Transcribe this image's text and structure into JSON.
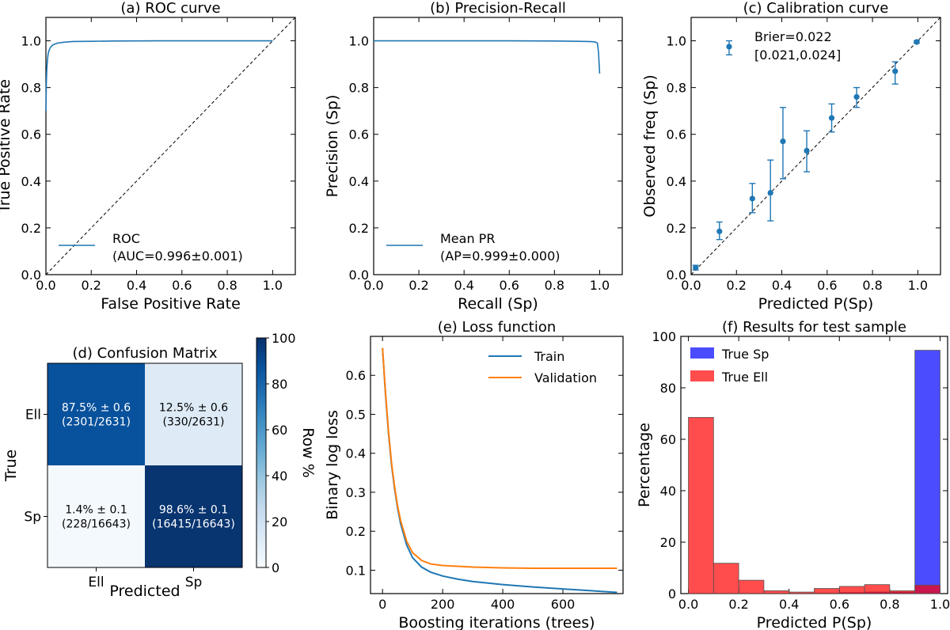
{
  "chart_data": [
    {
      "id": "a",
      "type": "line",
      "title": "(a) ROC curve",
      "xlabel": "False Positive Rate",
      "ylabel": "True Positive Rate",
      "xlim": [
        0.0,
        1.1
      ],
      "ylim": [
        0.0,
        1.1
      ],
      "xticks": [
        0.0,
        0.2,
        0.4,
        0.6,
        0.8,
        1.0
      ],
      "yticks": [
        0.0,
        0.2,
        0.4,
        0.6,
        0.8,
        1.0
      ],
      "tick_labels_x": [
        "0.0",
        "0.2",
        "0.4",
        "0.6",
        "0.8",
        "1.0"
      ],
      "tick_labels_y": [
        "0.0",
        "0.2",
        "0.4",
        "0.6",
        "0.8",
        "1.0"
      ],
      "legend_position": "lower-right",
      "legend_lines": [
        "ROC",
        "(AUC=0.996±0.001)"
      ],
      "color": "#1f77b4",
      "reference_line": [
        [
          0,
          0
        ],
        [
          1.1,
          1.1
        ]
      ],
      "series": [
        {
          "x": [
            0.0,
            0.002,
            0.004,
            0.007,
            0.01,
            0.015,
            0.02,
            0.03,
            0.05,
            0.08,
            0.12,
            0.2,
            0.3,
            0.5,
            0.7,
            1.0
          ],
          "y": [
            0.7,
            0.82,
            0.88,
            0.92,
            0.945,
            0.962,
            0.972,
            0.982,
            0.99,
            0.994,
            0.997,
            0.998,
            0.999,
            1.0,
            1.0,
            1.0
          ]
        }
      ]
    },
    {
      "id": "b",
      "type": "line",
      "title": "(b) Precision-Recall",
      "xlabel": "Recall (Sp)",
      "ylabel": "Precision (Sp)",
      "xlim": [
        0.0,
        1.1
      ],
      "ylim": [
        0.0,
        1.1
      ],
      "xticks": [
        0.0,
        0.2,
        0.4,
        0.6,
        0.8,
        1.0
      ],
      "yticks": [
        0.0,
        0.2,
        0.4,
        0.6,
        0.8,
        1.0
      ],
      "tick_labels_x": [
        "0.0",
        "0.2",
        "0.4",
        "0.6",
        "0.8",
        "1.0"
      ],
      "tick_labels_y": [
        "0.0",
        "0.2",
        "0.4",
        "0.6",
        "0.8",
        "1.0"
      ],
      "legend_position": "lower-right",
      "legend_lines": [
        "Mean PR",
        "(AP=0.999±0.000)"
      ],
      "color": "#1f77b4",
      "series": [
        {
          "x": [
            0.0,
            0.2,
            0.4,
            0.6,
            0.8,
            0.9,
            0.95,
            0.97,
            0.98,
            0.99,
            0.995,
            1.0
          ],
          "y": [
            1.0,
            1.0,
            1.0,
            1.0,
            0.999,
            0.998,
            0.997,
            0.996,
            0.995,
            0.99,
            0.95,
            0.86
          ]
        }
      ]
    },
    {
      "id": "c",
      "type": "scatter",
      "title": "(c) Calibration curve",
      "xlabel": "Predicted P(Sp)",
      "ylabel": "Observed freq (Sp)",
      "xlim": [
        0.0,
        1.1
      ],
      "ylim": [
        0.0,
        1.1
      ],
      "xticks": [
        0.0,
        0.2,
        0.4,
        0.6,
        0.8,
        1.0
      ],
      "yticks": [
        0.0,
        0.2,
        0.4,
        0.6,
        0.8,
        1.0
      ],
      "tick_labels_x": [
        "0.0",
        "0.2",
        "0.4",
        "0.6",
        "0.8",
        "1.0"
      ],
      "tick_labels_y": [
        "0.0",
        "0.2",
        "0.4",
        "0.6",
        "0.8",
        "1.0"
      ],
      "legend_position": "top-left",
      "legend_lines": [
        "Brier=0.022",
        "[0.021,0.024]"
      ],
      "legend_marker": {
        "y": 0.975,
        "lo": 0.94,
        "hi": 1.0
      },
      "color": "#1f77b4",
      "reference_line": [
        [
          0,
          0
        ],
        [
          1.1,
          1.1
        ]
      ],
      "points": [
        {
          "x": 0.02,
          "y": 0.03,
          "lo": 0.02,
          "hi": 0.04
        },
        {
          "x": 0.125,
          "y": 0.185,
          "lo": 0.15,
          "hi": 0.225
        },
        {
          "x": 0.27,
          "y": 0.325,
          "lo": 0.265,
          "hi": 0.39
        },
        {
          "x": 0.35,
          "y": 0.35,
          "lo": 0.23,
          "hi": 0.49
        },
        {
          "x": 0.405,
          "y": 0.57,
          "lo": 0.41,
          "hi": 0.715
        },
        {
          "x": 0.51,
          "y": 0.53,
          "lo": 0.44,
          "hi": 0.615
        },
        {
          "x": 0.62,
          "y": 0.67,
          "lo": 0.61,
          "hi": 0.73
        },
        {
          "x": 0.73,
          "y": 0.76,
          "lo": 0.715,
          "hi": 0.8
        },
        {
          "x": 0.9,
          "y": 0.87,
          "lo": 0.815,
          "hi": 0.91
        },
        {
          "x": 0.995,
          "y": 0.995,
          "lo": 0.99,
          "hi": 1.0
        }
      ]
    },
    {
      "id": "d",
      "type": "heatmap",
      "title": "(d) Confusion Matrix",
      "xlabel": "Predicted",
      "ylabel": "True",
      "row_labels": [
        "Ell",
        "Sp"
      ],
      "col_labels": [
        "Ell",
        "Sp"
      ],
      "values": [
        [
          87.5,
          12.5
        ],
        [
          1.4,
          98.6
        ]
      ],
      "cell_text": [
        [
          [
            "87.5% ± 0.6",
            "(2301/2631)"
          ],
          [
            "12.5% ± 0.6",
            "(330/2631)"
          ]
        ],
        [
          [
            "1.4% ± 0.1",
            "(228/16643)"
          ],
          [
            "98.6% ± 0.1",
            "(16415/16643)"
          ]
        ]
      ],
      "colorbar_label": "Row %",
      "colorbar_range": [
        0,
        100
      ],
      "colorbar_ticks": [
        0,
        20,
        40,
        60,
        80,
        100
      ],
      "colorbar_tick_labels": [
        "0",
        "20",
        "40",
        "60",
        "80",
        "100"
      ],
      "colormap": [
        "#f7fbff",
        "#deebf7",
        "#c6dbef",
        "#9ecae1",
        "#6baed6",
        "#4292c6",
        "#2171b5",
        "#08519c",
        "#08306b"
      ]
    },
    {
      "id": "e",
      "type": "line",
      "title": "(e) Loss function",
      "xlabel": "Boosting iterations (trees)",
      "ylabel": "Binary log loss",
      "xlim": [
        -40,
        800
      ],
      "ylim": [
        0.04,
        0.7
      ],
      "xticks": [
        0,
        200,
        400,
        600
      ],
      "yticks": [
        0.1,
        0.2,
        0.3,
        0.4,
        0.5,
        0.6
      ],
      "tick_labels_x": [
        "0",
        "200",
        "400",
        "600"
      ],
      "tick_labels_y": [
        "0.1",
        "0.2",
        "0.3",
        "0.4",
        "0.5",
        "0.6"
      ],
      "legend_position": "top-right",
      "series": [
        {
          "name": "Train",
          "color": "#1f77b4",
          "x": [
            0,
            10,
            20,
            30,
            40,
            50,
            60,
            80,
            100,
            130,
            160,
            200,
            250,
            300,
            400,
            500,
            600,
            700,
            780
          ],
          "y": [
            0.67,
            0.55,
            0.45,
            0.37,
            0.31,
            0.26,
            0.22,
            0.165,
            0.132,
            0.108,
            0.095,
            0.085,
            0.077,
            0.071,
            0.063,
            0.057,
            0.052,
            0.047,
            0.043
          ]
        },
        {
          "name": "Validation",
          "color": "#ff7f0e",
          "x": [
            0,
            10,
            20,
            30,
            40,
            50,
            60,
            80,
            100,
            130,
            160,
            200,
            250,
            300,
            400,
            500,
            600,
            700,
            780
          ],
          "y": [
            0.67,
            0.555,
            0.455,
            0.375,
            0.315,
            0.265,
            0.228,
            0.175,
            0.145,
            0.125,
            0.116,
            0.112,
            0.11,
            0.108,
            0.106,
            0.105,
            0.105,
            0.105,
            0.105
          ]
        }
      ]
    },
    {
      "id": "f",
      "type": "bar",
      "title": "(f) Results for test sample",
      "xlabel": "Predicted P(Sp)",
      "ylabel": "Percentage",
      "xlim": [
        -0.03,
        1.03
      ],
      "ylim": [
        0,
        100
      ],
      "xticks": [
        0.0,
        0.2,
        0.4,
        0.6,
        0.8,
        1.0
      ],
      "yticks": [
        0,
        20,
        40,
        60,
        80,
        100
      ],
      "tick_labels_x": [
        "0.0",
        "0.2",
        "0.4",
        "0.6",
        "0.8",
        "1.0"
      ],
      "tick_labels_y": [
        "0",
        "20",
        "40",
        "60",
        "80",
        "100"
      ],
      "legend_position": "top-left",
      "bin_edges": [
        0.0,
        0.1,
        0.2,
        0.3,
        0.4,
        0.5,
        0.6,
        0.7,
        0.8,
        0.9,
        1.0
      ],
      "series": [
        {
          "name": "True Sp",
          "color": "#0000ff",
          "opacity": 0.7,
          "values": [
            0.0,
            0.0,
            0.0,
            0.0,
            0.0,
            0.2,
            0.4,
            0.6,
            0.6,
            94.6
          ]
        },
        {
          "name": "True Ell",
          "color": "#ff0000",
          "opacity": 0.7,
          "values": [
            68.5,
            11.8,
            5.2,
            1.1,
            0.6,
            2.0,
            2.8,
            3.5,
            1.1,
            3.3
          ]
        }
      ]
    }
  ]
}
